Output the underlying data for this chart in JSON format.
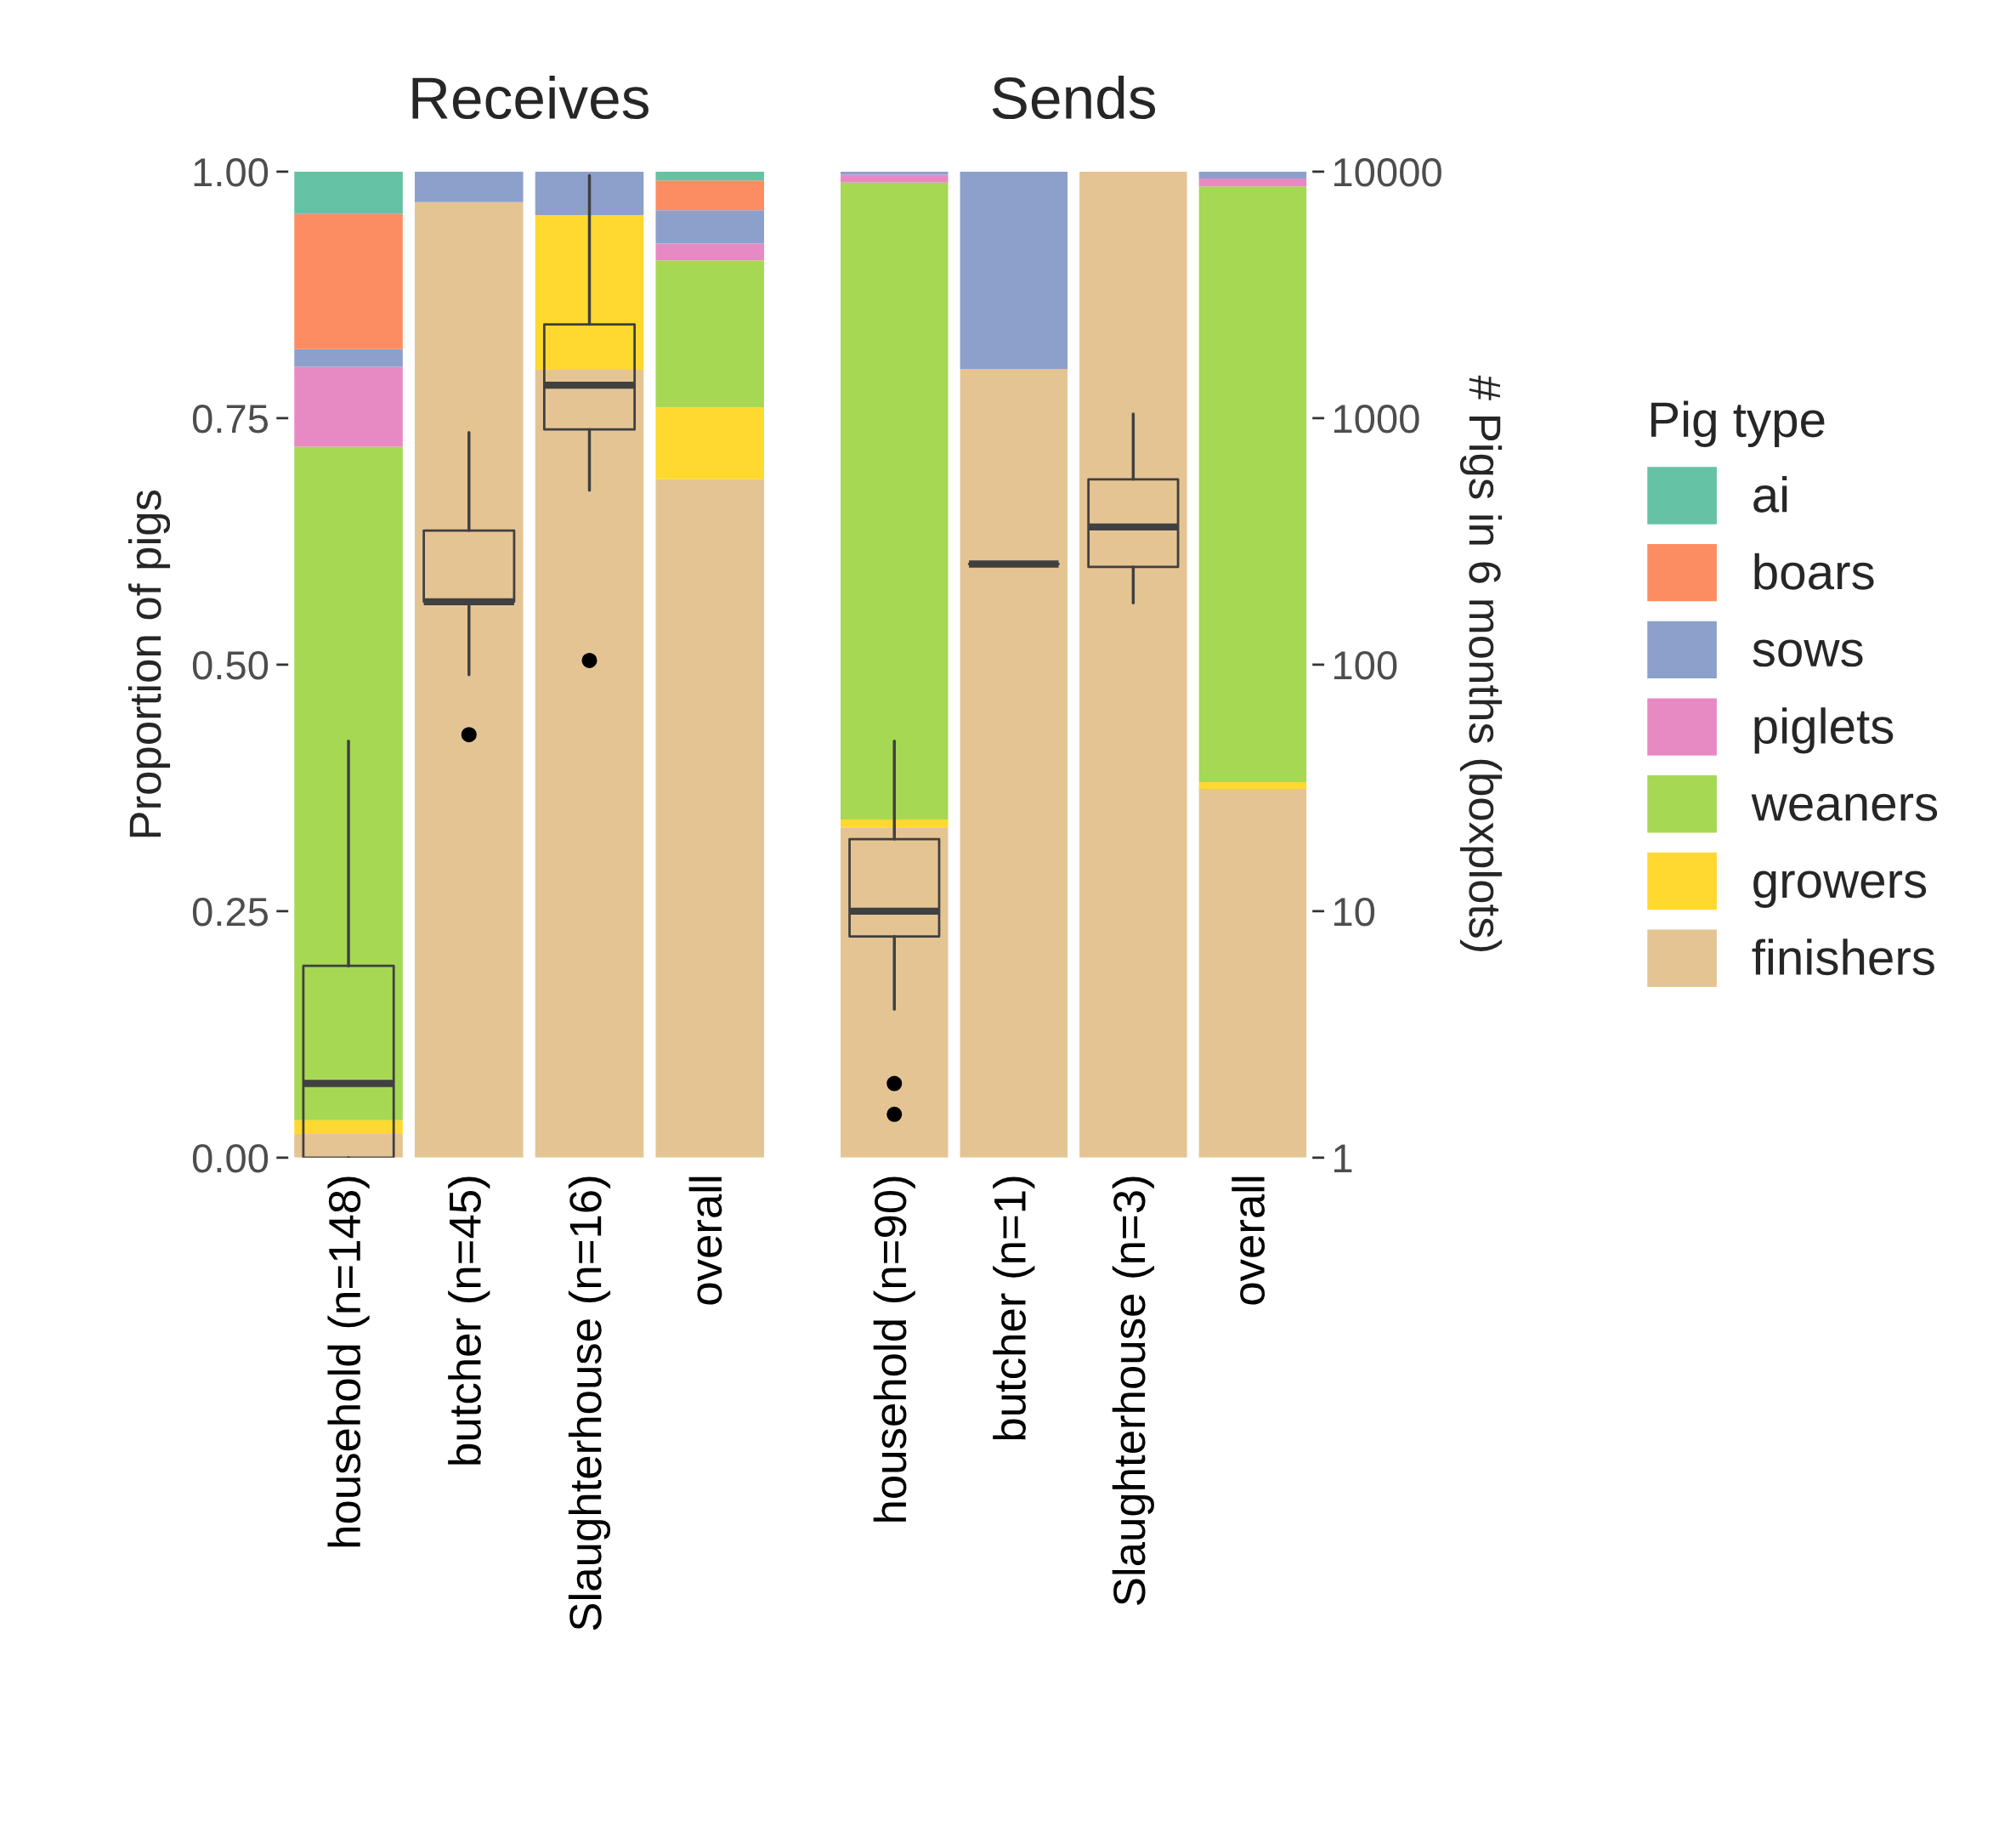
{
  "chart_data": [
    {
      "type": "bar",
      "title": "Receives",
      "stacked": true,
      "ylabel": "Proportion of pigs",
      "categories": [
        "household (n=148)",
        "butcher (n=45)",
        "Slaughterhouse (n=16)",
        "overall"
      ],
      "ylim": [
        0,
        1
      ],
      "yticks": [
        {
          "value": 0,
          "label": "0.00"
        },
        {
          "value": 0.25,
          "label": "0.25"
        },
        {
          "value": 0.5,
          "label": "0.50"
        },
        {
          "value": 0.75,
          "label": "0.75"
        },
        {
          "value": 1,
          "label": "1.00"
        }
      ],
      "y2lim": [
        1,
        10000
      ],
      "log": "y2",
      "series": [
        {
          "color": "#e5c494",
          "values": [
            0.024,
            0.969,
            0.799,
            0.688
          ]
        },
        {
          "color": "#ffd92f",
          "values": [
            0.014,
            0,
            0.157,
            0.073
          ]
        },
        {
          "color": "#a6d854",
          "values": [
            0.683,
            0,
            0,
            0.149
          ]
        },
        {
          "color": "#e78ac3",
          "values": [
            0.081,
            0,
            0,
            0.017
          ]
        },
        {
          "color": "#8da0cb",
          "values": [
            0.018,
            0.031,
            0.044,
            0.034
          ]
        },
        {
          "color": "#fc8d62",
          "values": [
            0.137,
            0,
            0,
            0.03
          ]
        },
        {
          "color": "#66c2a5",
          "values": [
            0.043,
            0,
            0,
            0.009
          ]
        },
        {
          "type": "box",
          "axis": "y2",
          "color": "#404040",
          "boxes": [
            {
              "low": 1,
              "q1": 1,
              "median": 2,
              "q3": 6,
              "high": 49
            },
            {
              "low": 91,
              "q1": 180,
              "median": 180,
              "q3": 350,
              "high": 875,
              "outliers": [
                52
              ]
            },
            {
              "low": 510,
              "q1": 900,
              "median": 1360,
              "q3": 2400,
              "high": 9650,
              "outliers": [
                104
              ]
            },
            null
          ]
        }
      ]
    },
    {
      "type": "bar",
      "title": "Sends",
      "stacked": true,
      "y2label": "# Pigs in 6 months (boxplots)",
      "categories": [
        "household (n=90)",
        "butcher (n=1)",
        "Slaughterhouse (n=3)",
        "overall"
      ],
      "ylim": [
        0,
        1
      ],
      "y2lim": [
        1,
        10000
      ],
      "y2ticks": [
        1,
        10,
        100,
        1000,
        10000
      ],
      "log": "y2",
      "legend": "right",
      "legend_title": "Pig type",
      "series": [
        {
          "name": "finishers",
          "color": "#e5c494",
          "values": [
            0.335,
            0.8,
            1.0,
            0.374
          ]
        },
        {
          "name": "growers",
          "color": "#ffd92f",
          "values": [
            0.008,
            0,
            0,
            0.007
          ]
        },
        {
          "name": "weaners",
          "color": "#a6d854",
          "values": [
            0.646,
            0,
            0,
            0.604
          ]
        },
        {
          "name": "piglets",
          "color": "#e78ac3",
          "values": [
            0.008,
            0,
            0,
            0.008
          ]
        },
        {
          "name": "sows",
          "color": "#8da0cb",
          "values": [
            0.003,
            0.2,
            0,
            0.007
          ]
        },
        {
          "name": "boars",
          "color": "#fc8d62",
          "values": [
            0,
            0,
            0,
            0
          ]
        },
        {
          "name": "ai",
          "color": "#66c2a5",
          "values": [
            0,
            0,
            0,
            0
          ]
        },
        {
          "type": "box",
          "axis": "y2",
          "color": "#404040",
          "boxes": [
            {
              "low": 4,
              "q1": 7.9,
              "median": 10,
              "q3": 19.6,
              "high": 49,
              "outliers": [
                2,
                1.5
              ]
            },
            {
              "low": 256,
              "q1": 256,
              "median": 256,
              "q3": 256,
              "high": 256
            },
            {
              "low": 178,
              "q1": 249,
              "median": 362,
              "q3": 565,
              "high": 1040
            },
            null
          ]
        }
      ]
    }
  ]
}
